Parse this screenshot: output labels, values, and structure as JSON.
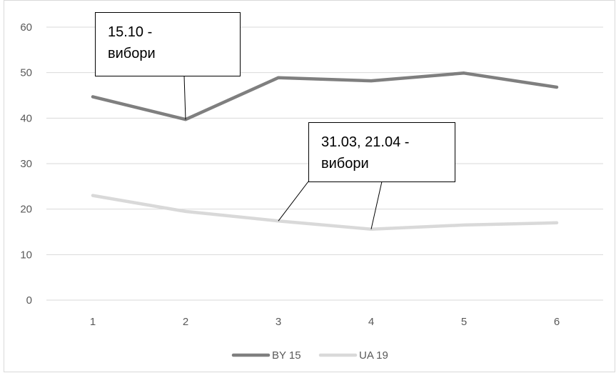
{
  "chart_data": {
    "type": "line",
    "x": [
      1,
      2,
      3,
      4,
      5,
      6
    ],
    "series": [
      {
        "name": "BY 15",
        "color": "#7f7f7f",
        "values": [
          44.7,
          39.7,
          48.9,
          48.2,
          49.9,
          46.8
        ]
      },
      {
        "name": "UA 19",
        "color": "#d9d9d9",
        "values": [
          23.0,
          19.5,
          17.4,
          15.6,
          16.5,
          17.0
        ]
      }
    ],
    "ylim": [
      0,
      60
    ],
    "yticks": [
      0,
      10,
      20,
      30,
      40,
      50,
      60
    ],
    "grid": true,
    "legend": "bottom",
    "annotations": [
      {
        "lines": [
          "15.10 -",
          "вибори"
        ],
        "targets": [
          {
            "series": 0,
            "x": 2
          }
        ]
      },
      {
        "lines": [
          "31.03, 21.04 -",
          "вибори"
        ],
        "targets": [
          {
            "series": 1,
            "x": 3
          },
          {
            "series": 1,
            "x": 4
          }
        ]
      }
    ]
  }
}
